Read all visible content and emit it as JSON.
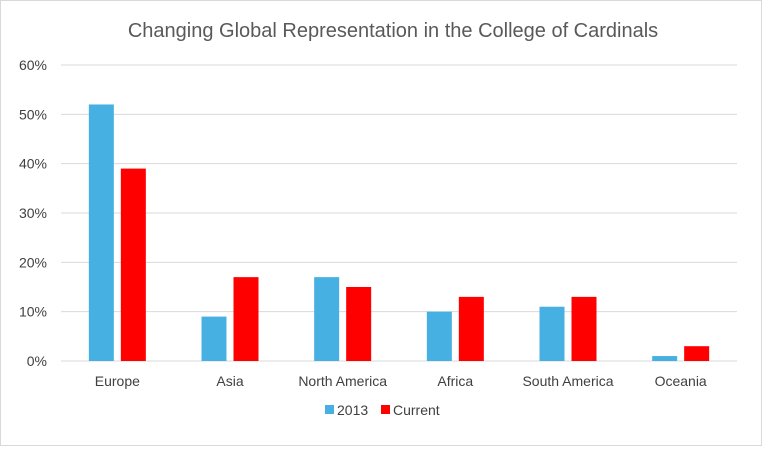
{
  "chart_data": {
    "type": "bar",
    "title": "Changing Global Representation in the College of Cardinals",
    "xlabel": "",
    "ylabel": "",
    "categories": [
      "Europe",
      "Asia",
      "North America",
      "Africa",
      "South America",
      "Oceania"
    ],
    "series": [
      {
        "name": "2013",
        "color": "#45b0e1",
        "values": [
          52,
          9,
          17,
          10,
          11,
          1
        ]
      },
      {
        "name": "Current",
        "color": "#ff0000",
        "values": [
          39,
          17,
          15,
          13,
          13,
          3
        ]
      }
    ],
    "ylim": [
      0,
      60
    ],
    "yticks": [
      "0%",
      "10%",
      "20%",
      "30%",
      "40%",
      "50%",
      "60%"
    ],
    "ytick_values": [
      0,
      10,
      20,
      30,
      40,
      50,
      60
    ],
    "grid": true,
    "legend_position": "bottom"
  }
}
